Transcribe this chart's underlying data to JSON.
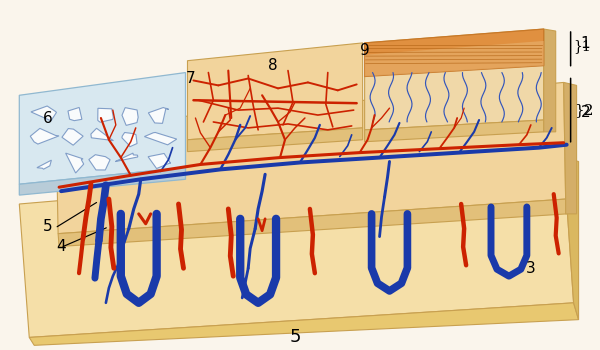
{
  "bg": "#faf5ec",
  "skin_top_fill": "#f5ddb0",
  "skin_mid_fill": "#f0d090",
  "skin_base_fill": "#f5dfa8",
  "skin_shadow": "#e0b870",
  "skin_dark": "#d0a850",
  "epi_orange": "#e8982a",
  "epi_light": "#f5e0b0",
  "left_block_fill": "#d8e8f0",
  "left_block_ec": "#90b8d0",
  "cell_color": "#7090c0",
  "red": "#cc2200",
  "blue": "#1a3aaa",
  "label_fs": 11,
  "annot_lw": 0.9
}
